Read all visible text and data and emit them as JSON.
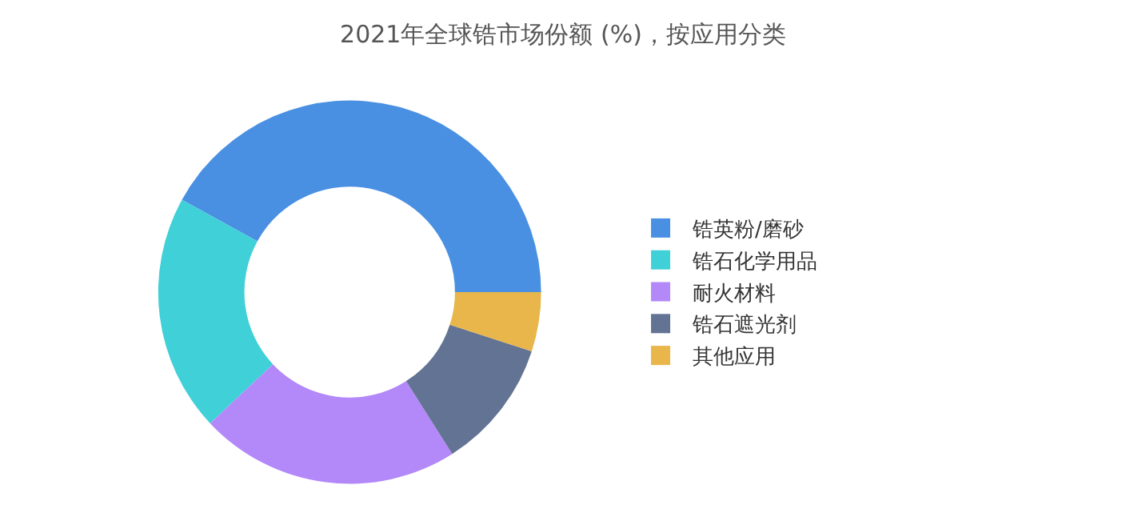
{
  "chart_data": {
    "type": "donut",
    "title": "2021年全球锆市场份额 (%)，按应用分类",
    "categories": [
      "锆英粉/磨砂",
      "锆石化学用品",
      "耐火材料",
      "锆石遮光剂",
      "其他应用"
    ],
    "values": [
      42,
      20,
      22,
      11,
      5
    ],
    "colors": [
      "#4a90e2",
      "#40d0d8",
      "#b388f8",
      "#627394",
      "#e8b64a"
    ],
    "legend": "right"
  }
}
